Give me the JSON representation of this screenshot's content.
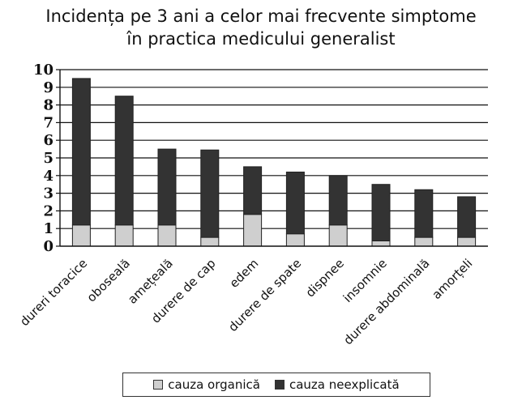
{
  "chart_data": {
    "type": "bar",
    "stacked": true,
    "title_lines": [
      "Incidența pe 3 ani a celor mai frecvente simptome",
      "în practica medicului generalist"
    ],
    "categories": [
      "dureri toracice",
      "oboseală",
      "amețeală",
      "durere de cap",
      "edem",
      "durere de spate",
      "dispnee",
      "insomnie",
      "durere abdominală",
      "amorțeli"
    ],
    "series": [
      {
        "name": "cauza organică",
        "color": "#cfcfcf",
        "values": [
          1.2,
          1.2,
          1.2,
          0.5,
          1.8,
          0.7,
          1.2,
          0.3,
          0.5,
          0.5
        ]
      },
      {
        "name": "cauza neexplicată",
        "color": "#333333",
        "values": [
          8.3,
          7.3,
          4.3,
          4.95,
          2.7,
          3.5,
          2.8,
          3.2,
          2.7,
          2.3
        ]
      }
    ],
    "yticks": [
      0,
      1,
      2,
      3,
      4,
      5,
      6,
      7,
      8,
      9,
      10
    ],
    "ylim": [
      0,
      10
    ],
    "grid": true,
    "legend_position": "bottom"
  }
}
